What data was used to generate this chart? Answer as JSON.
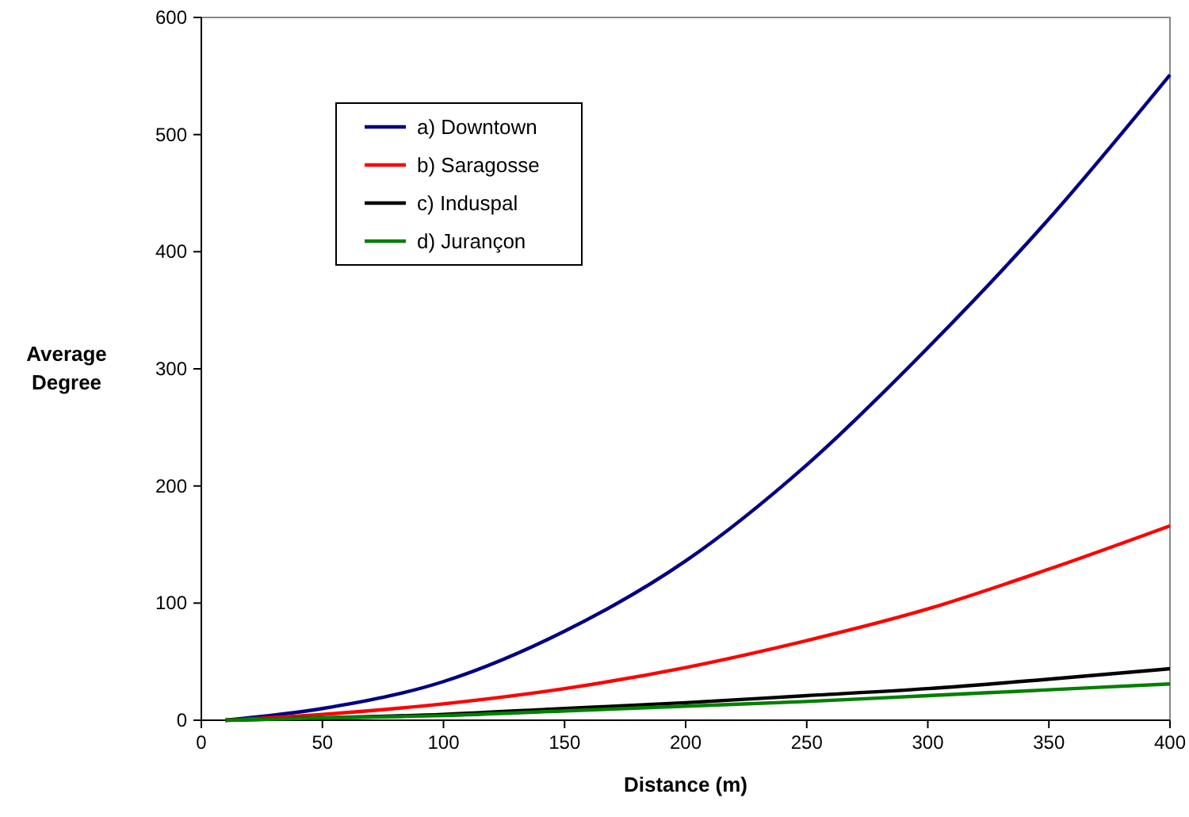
{
  "chart_data": {
    "type": "line",
    "xlabel": "Distance (m)",
    "ylabel": "Average Degree",
    "x": [
      10,
      50,
      100,
      150,
      200,
      250,
      300,
      350,
      400
    ],
    "series": [
      {
        "name": "a) Downtown",
        "color": "#000080",
        "values": [
          0,
          10,
          33,
          76,
          136,
          218,
          318,
          428,
          551
        ]
      },
      {
        "name": "b) Saragosse",
        "color": "#ff0000",
        "values": [
          0,
          5,
          14,
          27,
          45,
          68,
          95,
          129,
          166
        ]
      },
      {
        "name": "c) Induspal",
        "color": "#000000",
        "values": [
          0,
          2,
          5,
          10,
          15,
          21,
          27,
          35,
          44
        ]
      },
      {
        "name": "d) Jurançon",
        "color": "#008000",
        "values": [
          0,
          2,
          4,
          8,
          12,
          16,
          21,
          26,
          31
        ]
      }
    ],
    "xlim": [
      0,
      400
    ],
    "xticks": [
      0,
      50,
      100,
      150,
      200,
      250,
      300,
      350,
      400
    ],
    "ylim": [
      0,
      600
    ],
    "yticks": [
      0,
      100,
      200,
      300,
      400,
      500,
      600
    ],
    "grid": false,
    "legend": "top left",
    "marker": "none",
    "line_style": "solid"
  }
}
